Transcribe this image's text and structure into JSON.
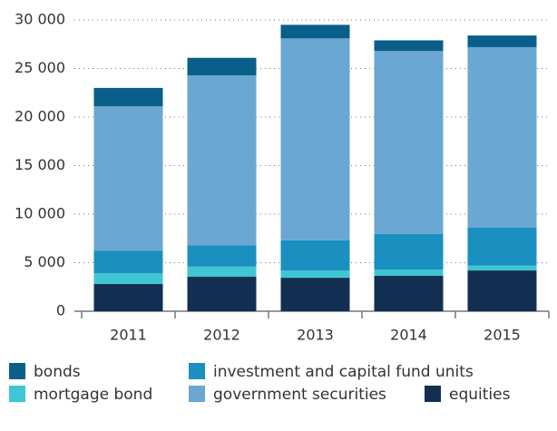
{
  "chart_data": {
    "type": "stacked_bar",
    "categories": [
      "2011",
      "2012",
      "2013",
      "2014",
      "2015"
    ],
    "series": [
      {
        "name": "equities",
        "color": "#122f52",
        "values": [
          2800,
          3550,
          3450,
          3650,
          4200
        ]
      },
      {
        "name": "mortgage bond",
        "color": "#3ec6d4",
        "values": [
          1100,
          1050,
          750,
          650,
          500
        ]
      },
      {
        "name": "investment and capital fund units",
        "color": "#1a8fc0",
        "values": [
          2350,
          2200,
          3100,
          3650,
          3900
        ]
      },
      {
        "name": "government securities",
        "color": "#6aa7d2",
        "values": [
          14850,
          17500,
          20800,
          18850,
          18600
        ]
      },
      {
        "name": "bonds",
        "color": "#0a5e8a",
        "values": [
          1900,
          1800,
          1400,
          1100,
          1200
        ]
      }
    ],
    "ylim": [
      0,
      30000
    ],
    "yticks": [
      0,
      {
        "value": 5000,
        "label": "5 000"
      },
      {
        "value": 10000,
        "label": "10 000"
      },
      {
        "value": 15000,
        "label": "15 000"
      },
      {
        "value": 20000,
        "label": "20 000"
      },
      {
        "value": 25000,
        "label": "25 000"
      },
      {
        "value": 30000,
        "label": "30 000"
      }
    ],
    "grid": true
  }
}
